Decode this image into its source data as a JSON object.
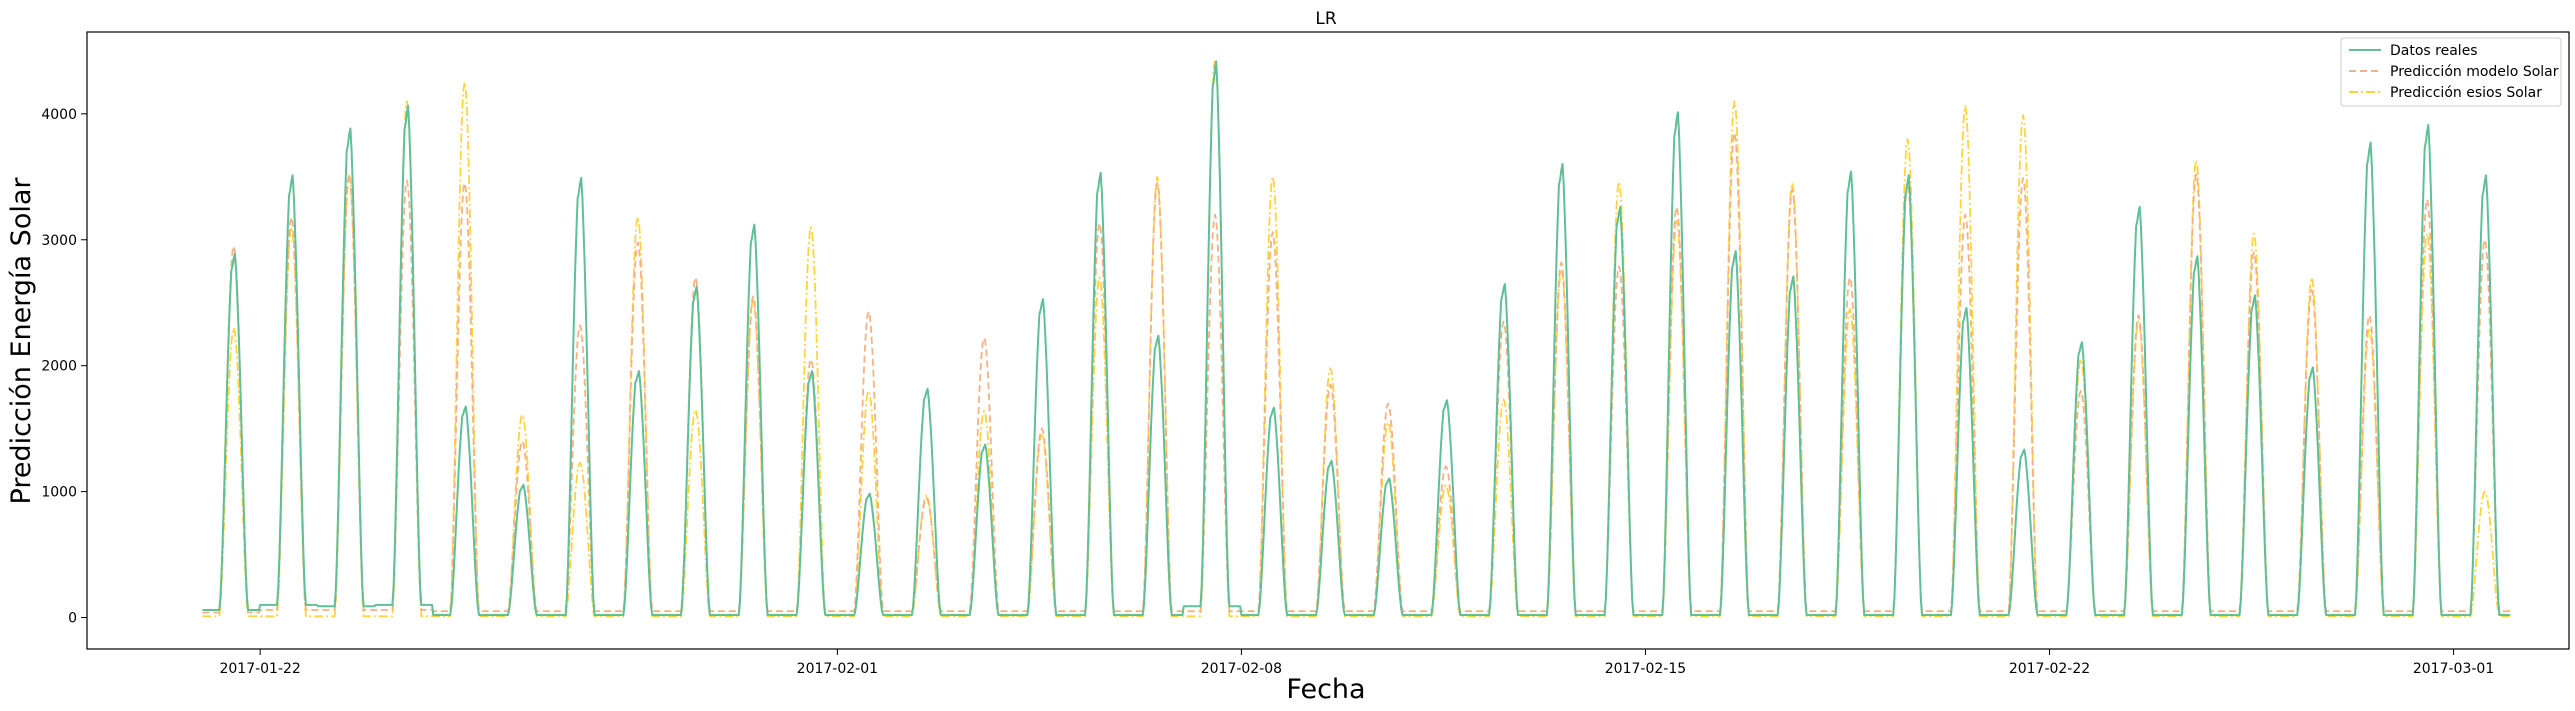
{
  "chart_data": {
    "type": "line",
    "title": "LR",
    "xlabel": "Fecha",
    "ylabel": "Predicción Energía Solar",
    "x_range": [
      "2017-01-19T00:00",
      "2017-03-03T00:00"
    ],
    "ylim": [
      -250,
      4650
    ],
    "x_ticks": [
      "2017-01-22",
      "2017-02-01",
      "2017-02-08",
      "2017-02-15",
      "2017-02-22",
      "2017-03-01"
    ],
    "y_ticks": [
      0,
      1000,
      2000,
      3000,
      4000
    ],
    "grid": false,
    "legend_position": "top-right",
    "start_date": "2017-01-21",
    "days": 40,
    "series": [
      {
        "name": "Datos reales",
        "color": "#5fbf96",
        "style": "solid",
        "peaks": [
          2880,
          3500,
          3870,
          4050,
          1670,
          1050,
          3480,
          1950,
          2620,
          3110,
          1950,
          980,
          1810,
          1370,
          2520,
          3520,
          2230,
          4400,
          1660,
          1240,
          1100,
          1720,
          2640,
          3590,
          3250,
          4000,
          2900,
          2700,
          3530,
          3500,
          2450,
          1330,
          2180,
          3250,
          2860,
          2550,
          1980,
          3760,
          3900,
          3500
        ],
        "baseline": [
          60,
          100,
          90,
          100,
          20,
          20,
          20,
          20,
          20,
          20,
          20,
          20,
          20,
          20,
          20,
          20,
          20,
          90,
          20,
          20,
          20,
          20,
          20,
          20,
          20,
          20,
          20,
          20,
          20,
          20,
          20,
          20,
          20,
          20,
          20,
          20,
          20,
          20,
          20,
          20
        ]
      },
      {
        "name": "Predicción modelo Solar",
        "color": "#f5b183",
        "style": "dashed",
        "peaks": [
          2950,
          3180,
          3520,
          3470,
          3450,
          1400,
          2320,
          2980,
          2700,
          2550,
          2050,
          2430,
          950,
          2220,
          1500,
          3130,
          3450,
          3200,
          3060,
          1850,
          1700,
          1200,
          2350,
          2820,
          2790,
          3260,
          3850,
          3400,
          2700,
          3450,
          3200,
          3490,
          1800,
          2400,
          3520,
          2900,
          2600,
          2400,
          3320,
          3000
        ],
        "baseline": [
          40,
          60,
          60,
          60,
          50,
          50,
          50,
          50,
          50,
          50,
          50,
          50,
          50,
          50,
          50,
          50,
          50,
          50,
          50,
          50,
          50,
          50,
          50,
          50,
          50,
          50,
          50,
          50,
          50,
          50,
          50,
          50,
          50,
          50,
          50,
          50,
          50,
          50,
          50,
          50
        ]
      },
      {
        "name": "Predicción esios Solar",
        "color": "#ffd43b",
        "style": "dashdot",
        "peaks": [
          2300,
          3100,
          3510,
          4100,
          4250,
          1610,
          1230,
          3180,
          1650,
          2520,
          3100,
          1800,
          970,
          1640,
          1450,
          2700,
          3500,
          4430,
          3500,
          1980,
          1550,
          1050,
          1730,
          2760,
          3460,
          3150,
          4100,
          3450,
          2450,
          3800,
          4060,
          3990,
          2050,
          2350,
          3630,
          3050,
          2700,
          2300,
          3050,
          1000
        ],
        "baseline": [
          10,
          10,
          10,
          10,
          10,
          10,
          10,
          10,
          10,
          10,
          10,
          10,
          10,
          10,
          10,
          10,
          10,
          10,
          10,
          10,
          10,
          10,
          10,
          10,
          10,
          10,
          10,
          10,
          10,
          10,
          10,
          10,
          10,
          10,
          10,
          10,
          10,
          10,
          10,
          10
        ]
      }
    ]
  }
}
